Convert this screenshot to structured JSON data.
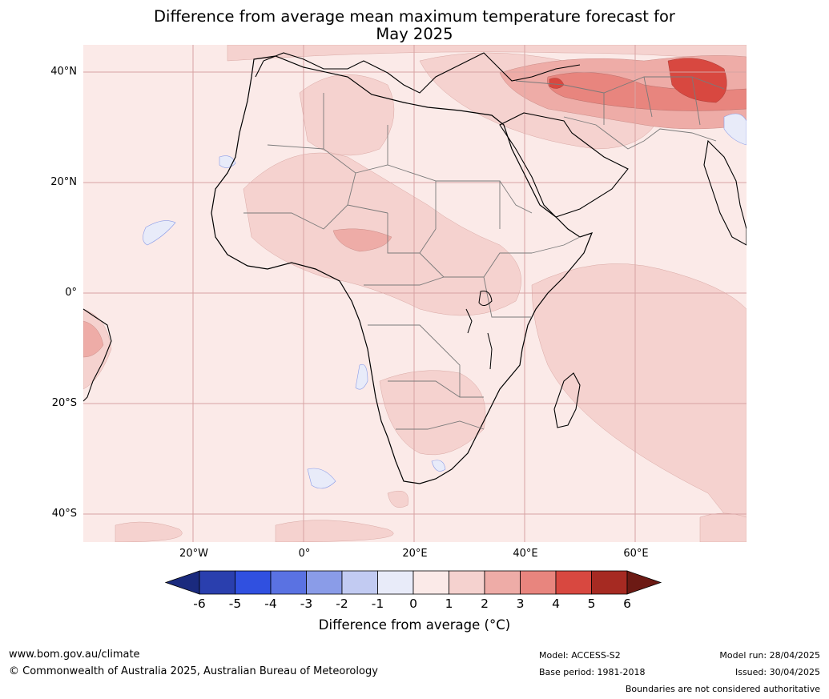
{
  "title_line1": "Difference from average mean maximum temperature forecast for",
  "title_line2": "May 2025",
  "lat_labels": [
    "40°N",
    "20°N",
    "0°",
    "20°S",
    "40°S"
  ],
  "lon_labels": [
    "20°W",
    "0°",
    "20°E",
    "40°E",
    "60°E"
  ],
  "colorbar": {
    "ticks": [
      "-6",
      "-5",
      "-4",
      "-3",
      "-2",
      "-1",
      "0",
      "1",
      "2",
      "3",
      "4",
      "5",
      "6"
    ],
    "colors": [
      "#1a2a7e",
      "#2a3fae",
      "#3050e0",
      "#5a72e2",
      "#8a9ce8",
      "#c2cbf2",
      "#e8ebf9",
      "#fbeae8",
      "#f5d2cf",
      "#eeaca7",
      "#e8857e",
      "#d84840",
      "#a62a22",
      "#6c1a14"
    ],
    "label": "Difference from average ($^\\circ$C)",
    "label_display": "Difference from average (°C)"
  },
  "map": {
    "base_color": "#fbeae8",
    "ocean_color": "#fbeae8"
  },
  "footer": {
    "url": "www.bom.gov.au/climate",
    "copyright": "© Commonwealth of Australia 2025, Australian Bureau of Meteorology",
    "model": "Model: ACCESS-S2",
    "base_period": "Base period: 1981-2018",
    "model_run": "Model run: 28/04/2025",
    "issued": "Issued: 30/04/2025",
    "disclaimer": "Boundaries are not considered authoritative"
  }
}
